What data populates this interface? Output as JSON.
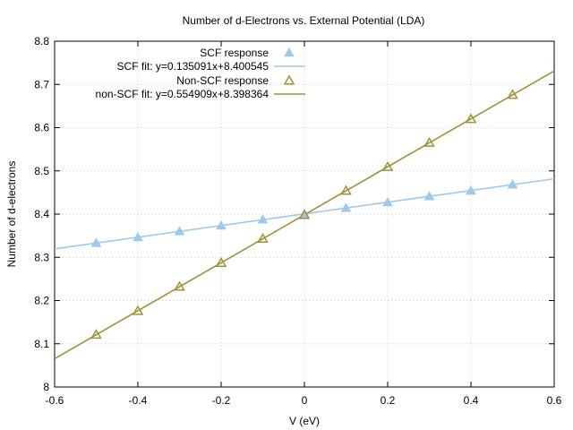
{
  "chart_data": {
    "type": "scatter",
    "title": "Number of d-Electrons vs. External Potential (LDA)",
    "xlabel": "V (eV)",
    "ylabel": "Number of d-electrons",
    "xlim": [
      -0.6,
      0.6
    ],
    "ylim": [
      8.0,
      8.8
    ],
    "xticks": [
      -0.6,
      -0.4,
      -0.2,
      0,
      0.2,
      0.4,
      0.6
    ],
    "xtick_labels": [
      "-0.6",
      "-0.4",
      "-0.2",
      "0",
      "0.2",
      "0.4",
      "0.6"
    ],
    "yticks": [
      8.0,
      8.1,
      8.2,
      8.3,
      8.4,
      8.5,
      8.6,
      8.7,
      8.8
    ],
    "ytick_labels": [
      "8",
      "8.1",
      "8.2",
      "8.3",
      "8.4",
      "8.5",
      "8.6",
      "8.7",
      "8.8"
    ],
    "grid": true,
    "legend_position": "top-left",
    "series": [
      {
        "name": "SCF response",
        "kind": "points",
        "marker": "filled-triangle",
        "color": "#9ec9ea",
        "x": [
          -0.5,
          -0.4,
          -0.3,
          -0.2,
          -0.1,
          0.0,
          0.1,
          0.2,
          0.3,
          0.4,
          0.5
        ],
        "y": [
          8.333,
          8.346,
          8.36,
          8.373,
          8.387,
          8.4,
          8.414,
          8.427,
          8.441,
          8.454,
          8.468
        ]
      },
      {
        "name": "SCF fit: y=0.135091x+8.400545",
        "kind": "line",
        "color": "#9ec9ea",
        "slope": 0.135091,
        "intercept": 8.400545
      },
      {
        "name": "Non-SCF response",
        "kind": "points",
        "marker": "open-triangle",
        "color": "#a0923a",
        "x": [
          -0.5,
          -0.4,
          -0.3,
          -0.2,
          -0.1,
          0.0,
          0.1,
          0.2,
          0.3,
          0.4,
          0.5
        ],
        "y": [
          8.121,
          8.176,
          8.232,
          8.287,
          8.343,
          8.398,
          8.454,
          8.509,
          8.565,
          8.62,
          8.676
        ]
      },
      {
        "name": "non-SCF fit: y=0.554909x+8.398364",
        "kind": "line",
        "color": "#a0923a",
        "slope": 0.554909,
        "intercept": 8.398364
      }
    ]
  }
}
